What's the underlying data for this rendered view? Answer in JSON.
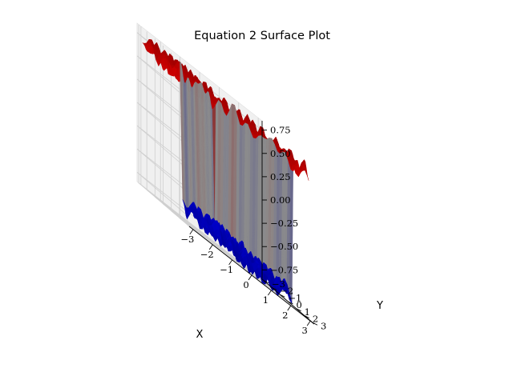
{
  "chart_data": {
    "type": "surface",
    "title": "Equation 2 Surface Plot",
    "xlabel": "X",
    "ylabel": "Y",
    "zlabel": "",
    "xlim": [
      -3.2,
      3.2
    ],
    "ylim": [
      -3.2,
      3.2
    ],
    "zlim": [
      -0.85,
      0.85
    ],
    "x_ticks": [
      "−3",
      "−2",
      "−1",
      "0",
      "1",
      "2",
      "3"
    ],
    "y_ticks": [
      "−3",
      "−2",
      "−1",
      "0",
      "1",
      "2",
      "3"
    ],
    "z_ticks": [
      "−0.75",
      "−0.50",
      "−0.25",
      "0.00",
      "0.25",
      "0.50",
      "0.75"
    ],
    "x_tick_values": [
      -3,
      -2,
      -1,
      0,
      1,
      2,
      3
    ],
    "y_tick_values": [
      -3,
      -2,
      -1,
      0,
      1,
      2,
      3
    ],
    "z_tick_values": [
      -0.75,
      -0.5,
      -0.25,
      0,
      0.25,
      0.5,
      0.75
    ],
    "colormap": "seismic",
    "colors": {
      "positive": "#ff0000",
      "negative": "#0000ff",
      "neutral": "#ffffff",
      "pane": "#f2f2f2",
      "grid": "#cccccc"
    },
    "grid": true,
    "surface_levels": [
      {
        "region": "x < -1, y < 1",
        "z": 0.7
      },
      {
        "region": "x < -1, y > 1",
        "z": 0.7
      },
      {
        "region": "x > 1, y < 1",
        "z": -0.75
      },
      {
        "region": "x > 1, y > 1",
        "z": 0.7
      },
      {
        "region": "-1 < x < 1, y < 1",
        "z": -0.7
      },
      {
        "region": "-1 < x < 1, y > 1",
        "z": 0.7
      }
    ]
  }
}
